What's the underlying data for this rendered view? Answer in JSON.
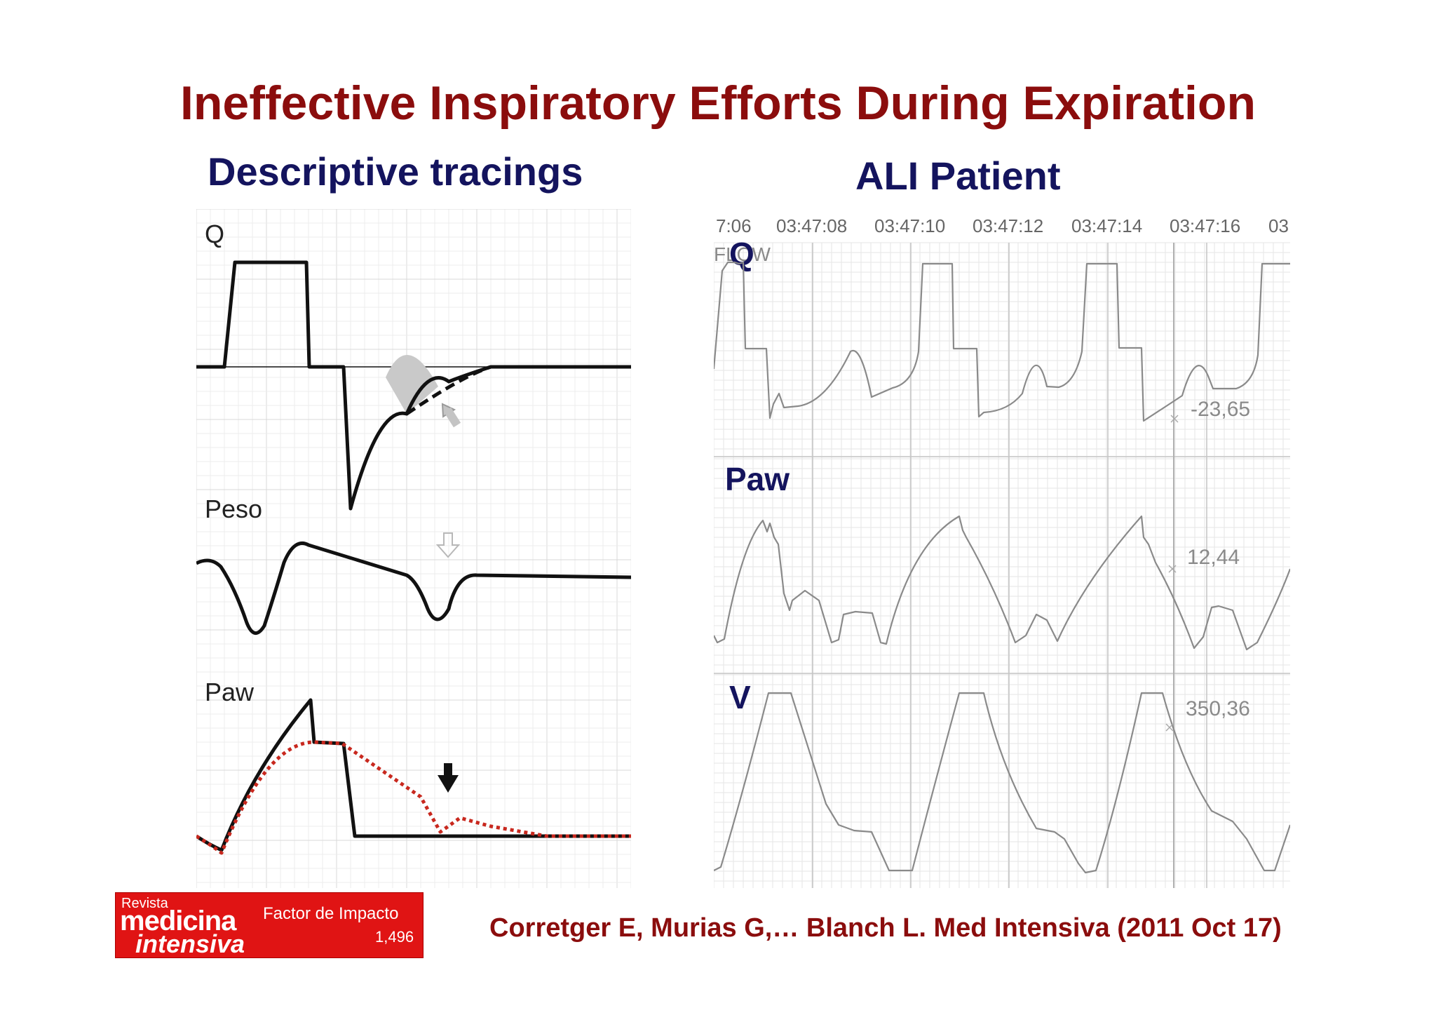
{
  "slide": {
    "title": "Ineffective Inspiratory Efforts During Expiration",
    "left_subtitle": "Descriptive tracings",
    "right_subtitle": "ALI Patient",
    "citation": "Corretger E, Murias G,… Blanch L. Med Intensiva (2011 Oct 17)"
  },
  "left_panel": {
    "labels": {
      "q": "Q",
      "peso": "Peso",
      "paw": "Paw"
    }
  },
  "right_panel": {
    "time_ticks": [
      "7:06",
      "03:47:08",
      "03:47:10",
      "03:47:12",
      "03:47:14",
      "03:47:16",
      "03"
    ],
    "flow_caption": "FLOW",
    "labels": {
      "q": "Q",
      "paw": "Paw",
      "v": "V"
    },
    "cursor_values": {
      "q": "-23,65",
      "paw": "12,44",
      "v": "350,36"
    }
  },
  "logo": {
    "revista": "Revista",
    "medicina": "medicina",
    "intensiva": "intensiva",
    "factor_label": "Factor de Impacto",
    "factor_value": "1,496"
  },
  "colors": {
    "title": "#8b0d0d",
    "subtitle": "#14145e",
    "trace_black": "#111111",
    "trace_red_dotted": "#c8281e",
    "monitor_trace": "#8a8a8a",
    "grid": "#e3e3e3",
    "logo_bg": "#e01414"
  },
  "icons": [
    "up-left-gray-arrow-icon",
    "down-outline-arrow-icon",
    "down-black-arrow-icon"
  ]
}
